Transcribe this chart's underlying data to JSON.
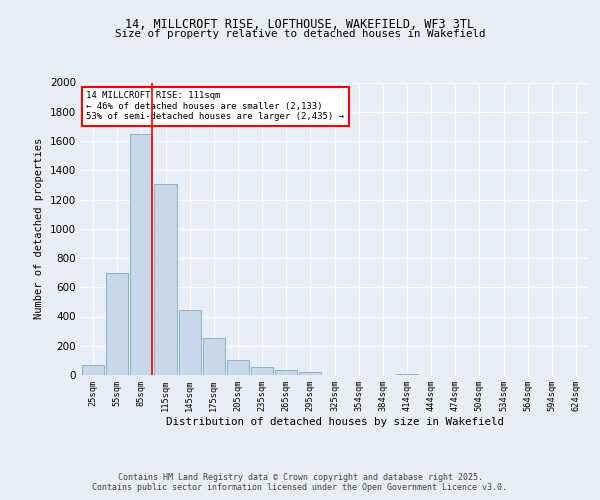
{
  "title_line1": "14, MILLCROFT RISE, LOFTHOUSE, WAKEFIELD, WF3 3TL",
  "title_line2": "Size of property relative to detached houses in Wakefield",
  "xlabel": "Distribution of detached houses by size in Wakefield",
  "ylabel": "Number of detached properties",
  "bar_color": "#c8d8e8",
  "bar_edge_color": "#7aaac8",
  "categories": [
    "25sqm",
    "55sqm",
    "85sqm",
    "115sqm",
    "145sqm",
    "175sqm",
    "205sqm",
    "235sqm",
    "265sqm",
    "295sqm",
    "325sqm",
    "354sqm",
    "384sqm",
    "414sqm",
    "444sqm",
    "474sqm",
    "504sqm",
    "534sqm",
    "564sqm",
    "594sqm",
    "624sqm"
  ],
  "values": [
    68,
    700,
    1650,
    1305,
    445,
    255,
    100,
    55,
    33,
    20,
    0,
    0,
    0,
    10,
    0,
    0,
    0,
    0,
    0,
    0,
    0
  ],
  "property_line_x": 2.45,
  "annotation_text": "14 MILLCROFT RISE: 111sqm\n← 46% of detached houses are smaller (2,133)\n53% of semi-detached houses are larger (2,435) →",
  "ylim": [
    0,
    2000
  ],
  "yticks": [
    0,
    200,
    400,
    600,
    800,
    1000,
    1200,
    1400,
    1600,
    1800,
    2000
  ],
  "footer_line1": "Contains HM Land Registry data © Crown copyright and database right 2025.",
  "footer_line2": "Contains public sector information licensed under the Open Government Licence v3.0.",
  "bg_color": "#e8eef8",
  "plot_bg_color": "#e8eef8"
}
